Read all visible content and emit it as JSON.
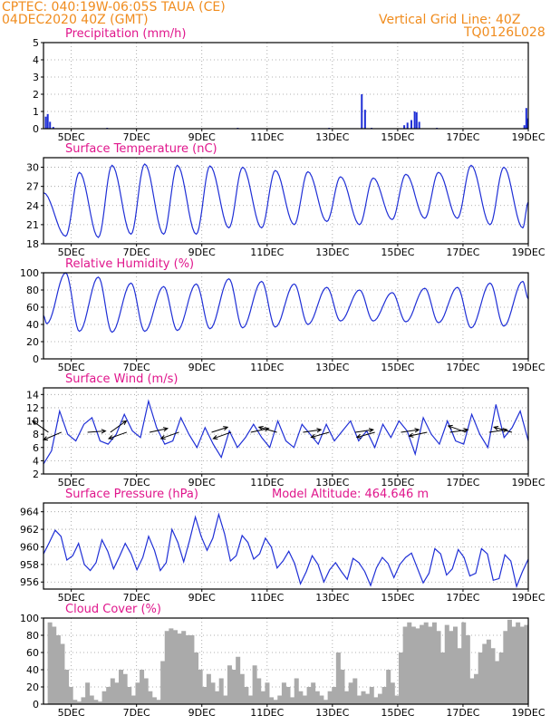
{
  "header": {
    "line1": "CPTEC:   040:19W-06:05S   TAUA (CE)",
    "line2": "04DEC2020 40Z (GMT)",
    "grid_note": "Vertical Grid Line: 40Z",
    "code": "TQ0126L028"
  },
  "colors": {
    "header": "#f08c1e",
    "panel_title": "#e0168c",
    "series": "#1f2fd6",
    "cloud_fill": "#aaaaaa",
    "grid": "#999999"
  },
  "chart_data": [
    {
      "id": "precip",
      "type": "bar",
      "title": "Precipitation (mm/h)",
      "x_ticks": [
        "5DEC",
        "7DEC",
        "9DEC",
        "11DEC",
        "13DEC",
        "15DEC",
        "17DEC",
        "19DEC"
      ],
      "ylim": [
        0,
        5
      ],
      "yticks": [
        0,
        1,
        2,
        3,
        4,
        5
      ],
      "x_range_days": [
        4.15,
        19.0
      ],
      "bars": [
        {
          "x": 4.22,
          "value": 0.7
        },
        {
          "x": 4.28,
          "value": 0.85
        },
        {
          "x": 4.35,
          "value": 0.4
        },
        {
          "x": 4.45,
          "value": 0.1
        },
        {
          "x": 6.1,
          "value": 0.05
        },
        {
          "x": 10.1,
          "value": 0.05
        },
        {
          "x": 12.9,
          "value": 0.05
        },
        {
          "x": 13.9,
          "value": 2.0
        },
        {
          "x": 14.0,
          "value": 1.1
        },
        {
          "x": 14.2,
          "value": 0.05
        },
        {
          "x": 15.2,
          "value": 0.2
        },
        {
          "x": 15.3,
          "value": 0.35
        },
        {
          "x": 15.42,
          "value": 0.5
        },
        {
          "x": 15.52,
          "value": 1.0
        },
        {
          "x": 15.58,
          "value": 0.95
        },
        {
          "x": 15.66,
          "value": 0.4
        },
        {
          "x": 16.2,
          "value": 0.05
        },
        {
          "x": 18.88,
          "value": 0.2
        },
        {
          "x": 18.94,
          "value": 1.2
        },
        {
          "x": 18.98,
          "value": 0.6
        }
      ]
    },
    {
      "id": "temp",
      "type": "line",
      "title": "Surface Temperature (nC)",
      "x_ticks": [
        "5DEC",
        "7DEC",
        "9DEC",
        "11DEC",
        "13DEC",
        "15DEC",
        "17DEC",
        "19DEC"
      ],
      "ylim": [
        18,
        31.5
      ],
      "yticks": [
        18,
        21,
        24,
        27,
        30
      ],
      "x_range_days": [
        4.15,
        19.0
      ],
      "cycle": {
        "peak_hour": 0.25,
        "trough_hour": 0.83
      },
      "daily_max": [
        29.2,
        30.3,
        30.5,
        30.3,
        30.2,
        30.0,
        29.5,
        29.3,
        28.5,
        28.3,
        28.9,
        29.2,
        30.3,
        30.0,
        31.0,
        30.0
      ],
      "daily_min": [
        19.2,
        19.0,
        19.5,
        19.5,
        19.5,
        20.5,
        20.5,
        21.0,
        21.5,
        21.0,
        21.8,
        22.0,
        22.0,
        21.0,
        20.5,
        22.0,
        23.5
      ],
      "start_value": 26.0,
      "end_value": 24.5
    },
    {
      "id": "rh",
      "type": "line",
      "title": "Relative Humidity (%)",
      "x_ticks": [
        "5DEC",
        "7DEC",
        "9DEC",
        "11DEC",
        "13DEC",
        "15DEC",
        "17DEC",
        "19DEC"
      ],
      "ylim": [
        0,
        100
      ],
      "yticks": [
        0,
        20,
        40,
        60,
        80,
        100
      ],
      "x_range_days": [
        4.15,
        19.0
      ],
      "cycle": {
        "peak_hour": 0.83,
        "trough_hour": 0.25
      },
      "daily_max": [
        100,
        95,
        88,
        84,
        87,
        93,
        90,
        87,
        83,
        80,
        77,
        82,
        83,
        88,
        90,
        80,
        87,
        85
      ],
      "daily_min": [
        41,
        32,
        31,
        32,
        33,
        35,
        36,
        37,
        40,
        44,
        44,
        43,
        42,
        36,
        38,
        40,
        35
      ],
      "start_value": 50,
      "end_value": 70
    },
    {
      "id": "wind",
      "type": "line",
      "title": "Surface Wind (m/s)",
      "x_ticks": [
        "5DEC",
        "7DEC",
        "9DEC",
        "11DEC",
        "13DEC",
        "15DEC",
        "17DEC",
        "19DEC"
      ],
      "ylim": [
        2,
        15
      ],
      "yticks": [
        2,
        4,
        6,
        8,
        10,
        12,
        14
      ],
      "x_range_days": [
        4.15,
        19.0
      ],
      "series_values": [
        3.5,
        5.5,
        11.5,
        8.0,
        7.0,
        9.5,
        10.5,
        7.0,
        6.5,
        8.0,
        11.0,
        8.5,
        7.5,
        13.0,
        9.0,
        6.5,
        7.0,
        10.5,
        8.0,
        6.0,
        9.0,
        6.5,
        4.5,
        8.5,
        6.0,
        7.5,
        9.5,
        7.5,
        6.0,
        10.0,
        7.0,
        6.0,
        9.5,
        8.0,
        6.5,
        9.5,
        7.0,
        8.5,
        10.0,
        7.0,
        8.5,
        6.0,
        9.5,
        7.5,
        10.0,
        8.5,
        5.0,
        10.5,
        8.0,
        6.5,
        10.0,
        7.0,
        6.5,
        11.0,
        8.0,
        6.0,
        12.5,
        7.5,
        9.0,
        11.5,
        7.0
      ],
      "vectors": [
        {
          "x": 4.3,
          "u": -0.8,
          "v": 0.9
        },
        {
          "x": 4.7,
          "u": -0.9,
          "v": -0.6
        },
        {
          "x": 5.5,
          "u": 0.9,
          "v": 0.1
        },
        {
          "x": 6.2,
          "u": 0.8,
          "v": 0.9
        },
        {
          "x": 6.7,
          "u": -0.9,
          "v": -0.5
        },
        {
          "x": 7.4,
          "u": 0.9,
          "v": 0.3
        },
        {
          "x": 8.3,
          "u": -0.9,
          "v": -0.5
        },
        {
          "x": 9.3,
          "u": 0.8,
          "v": 0.4
        },
        {
          "x": 9.9,
          "u": -0.9,
          "v": -0.5
        },
        {
          "x": 10.5,
          "u": 0.9,
          "v": 0.3
        },
        {
          "x": 11.3,
          "u": -0.9,
          "v": 0.4
        },
        {
          "x": 12.1,
          "u": 0.9,
          "v": 0.2
        },
        {
          "x": 12.9,
          "u": -0.9,
          "v": -0.4
        },
        {
          "x": 13.7,
          "u": 0.9,
          "v": 0.2
        },
        {
          "x": 14.3,
          "u": -0.9,
          "v": -0.4
        },
        {
          "x": 15.1,
          "u": 0.9,
          "v": 0.2
        },
        {
          "x": 15.9,
          "u": -0.9,
          "v": -0.3
        },
        {
          "x": 16.6,
          "u": 0.9,
          "v": 0.2
        },
        {
          "x": 17.1,
          "u": -0.9,
          "v": 0.5
        },
        {
          "x": 17.8,
          "u": 0.9,
          "v": 0.2
        },
        {
          "x": 18.5,
          "u": -0.9,
          "v": 0.4
        }
      ]
    },
    {
      "id": "pressure",
      "type": "line",
      "title": "Surface Pressure (hPa)",
      "subtitle": "Model Altitude: 464.646  m",
      "x_ticks": [
        "5DEC",
        "7DEC",
        "9DEC",
        "11DEC",
        "13DEC",
        "15DEC",
        "17DEC",
        "19DEC"
      ],
      "ylim": [
        955.2,
        965.0
      ],
      "yticks": [
        956,
        958,
        960,
        962,
        964
      ],
      "x_range_days": [
        4.15,
        19.0
      ],
      "series_values": [
        959.2,
        960.5,
        961.9,
        961.2,
        958.5,
        959.0,
        960.4,
        958.0,
        957.3,
        958.2,
        960.8,
        959.5,
        957.5,
        958.9,
        960.4,
        959.2,
        957.4,
        958.8,
        961.2,
        959.6,
        957.3,
        958.2,
        962.0,
        960.5,
        958.3,
        960.7,
        963.4,
        961.2,
        959.6,
        961.0,
        963.7,
        961.5,
        958.4,
        959.0,
        961.3,
        960.5,
        958.6,
        959.2,
        961.0,
        960.0,
        957.6,
        958.4,
        959.5,
        958.1,
        955.8,
        957.2,
        959.0,
        958.0,
        956.0,
        957.4,
        958.2,
        957.2,
        956.3,
        958.7,
        958.2,
        957.2,
        955.6,
        957.6,
        958.8,
        958.1,
        956.5,
        958.0,
        958.8,
        959.3,
        957.6,
        955.9,
        957.0,
        959.8,
        959.2,
        956.8,
        957.5,
        959.7,
        958.8,
        956.7,
        957.0,
        959.8,
        959.2,
        956.2,
        956.4,
        959.1,
        958.4,
        955.5,
        957.2,
        958.6
      ]
    },
    {
      "id": "cloud",
      "type": "area",
      "title": "Cloud Cover (%)",
      "x_ticks": [
        "5DEC",
        "7DEC",
        "9DEC",
        "11DEC",
        "13DEC",
        "15DEC",
        "17DEC",
        "19DEC"
      ],
      "ylim": [
        0,
        100
      ],
      "yticks": [
        0,
        20,
        40,
        60,
        80,
        100
      ],
      "x_range_days": [
        4.15,
        19.0
      ],
      "series_values": [
        0,
        95,
        90,
        80,
        70,
        40,
        20,
        5,
        3,
        8,
        25,
        10,
        5,
        3,
        15,
        20,
        30,
        25,
        40,
        35,
        20,
        10,
        25,
        40,
        30,
        15,
        8,
        5,
        50,
        85,
        88,
        86,
        82,
        85,
        80,
        80,
        60,
        40,
        20,
        35,
        25,
        15,
        30,
        10,
        45,
        40,
        55,
        35,
        20,
        10,
        45,
        30,
        15,
        25,
        8,
        5,
        10,
        25,
        20,
        8,
        30,
        15,
        10,
        20,
        25,
        15,
        10,
        5,
        15,
        20,
        60,
        40,
        15,
        25,
        30,
        10,
        15,
        12,
        20,
        8,
        12,
        20,
        40,
        25,
        10,
        60,
        90,
        95,
        90,
        88,
        92,
        95,
        90,
        95,
        85,
        60,
        92,
        85,
        90,
        65,
        95,
        80,
        30,
        35,
        60,
        70,
        75,
        65,
        50,
        60,
        85,
        98,
        90,
        95,
        90,
        92
      ]
    }
  ]
}
